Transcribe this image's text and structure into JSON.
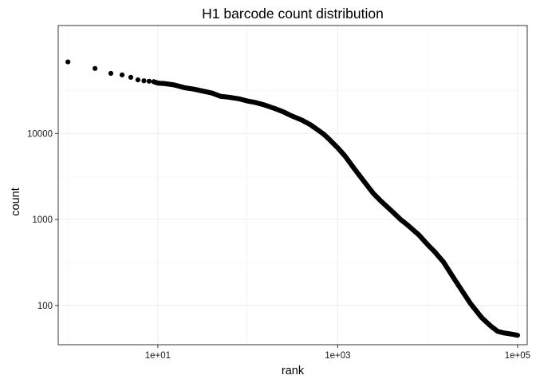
{
  "chart_data": {
    "type": "scatter",
    "title": "H1 barcode count distribution",
    "xlabel": "rank",
    "ylabel": "count",
    "x_scale": "log10",
    "y_scale": "log10",
    "xlim": [
      0.78,
      128000
    ],
    "ylim": [
      35,
      180000
    ],
    "x_ticks": [
      10,
      1000,
      100000
    ],
    "x_tick_labels": [
      "1e+01",
      "1e+03",
      "1e+05"
    ],
    "y_ticks": [
      100,
      1000,
      10000
    ],
    "y_tick_labels": [
      "100",
      "1000",
      "10000"
    ],
    "grid": true,
    "legend": "none",
    "point_color": "#000000",
    "x": [
      1,
      2,
      3,
      4,
      5,
      6,
      7,
      8,
      9,
      10,
      12,
      15,
      20,
      25,
      30,
      40,
      50,
      60,
      80,
      100,
      120,
      150,
      200,
      250,
      300,
      400,
      500,
      600,
      700,
      800,
      1000,
      1200,
      1500,
      2000,
      2500,
      3000,
      4000,
      5000,
      6000,
      8000,
      10000,
      12000,
      15000,
      20000,
      25000,
      30000,
      40000,
      50000,
      60000,
      70000,
      80000,
      90000,
      100000
    ],
    "y": [
      68000,
      57000,
      50000,
      48000,
      45000,
      42000,
      41000,
      40500,
      40000,
      38500,
      38000,
      36800,
      34000,
      32800,
      31500,
      29500,
      27000,
      26500,
      25300,
      23800,
      23000,
      21600,
      19500,
      17800,
      16200,
      14300,
      12600,
      11000,
      9800,
      8600,
      6800,
      5500,
      4000,
      2700,
      2000,
      1650,
      1250,
      1000,
      860,
      660,
      510,
      420,
      320,
      200,
      140,
      105,
      72,
      58,
      50,
      48,
      47,
      46,
      45
    ]
  }
}
